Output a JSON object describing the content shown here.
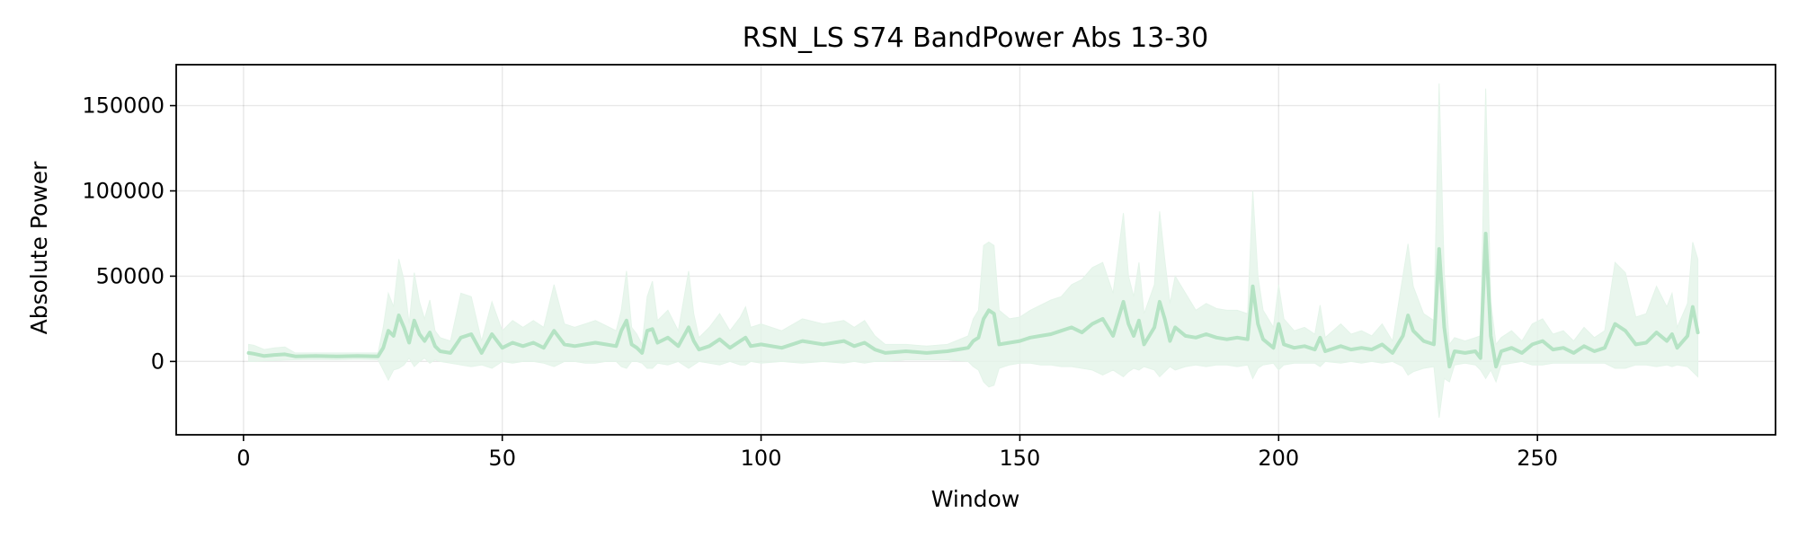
{
  "chart_data": {
    "type": "area",
    "title": "RSN_LS S74 BandPower Abs 13-30",
    "xlabel": "Window",
    "ylabel": "Absolute Power",
    "xlim": [
      -13,
      296
    ],
    "ylim": [
      -43000,
      174000
    ],
    "x_ticks": [
      0,
      50,
      100,
      150,
      200,
      250
    ],
    "y_ticks": [
      0,
      50000,
      100000,
      150000
    ],
    "x_tick_labels": [
      "0",
      "50",
      "100",
      "150",
      "200",
      "250"
    ],
    "y_tick_labels": [
      "0",
      "50000",
      "100000",
      "150000"
    ],
    "grid": true,
    "legend": "none",
    "series": [
      {
        "line_color": "#b5e3c4",
        "band_color": "#e4f4e9",
        "points": [
          [
            1,
            5000,
            0,
            10000
          ],
          [
            2,
            4500,
            0,
            9500
          ],
          [
            4,
            3200,
            300,
            7000
          ],
          [
            6,
            3800,
            500,
            8000
          ],
          [
            8,
            4200,
            800,
            8500
          ],
          [
            10,
            3000,
            1000,
            5000
          ],
          [
            14,
            3200,
            1200,
            5000
          ],
          [
            18,
            3000,
            1000,
            5000
          ],
          [
            22,
            3200,
            1300,
            5000
          ],
          [
            26,
            3000,
            1000,
            5000
          ],
          [
            27,
            8000,
            -5000,
            20000
          ],
          [
            28,
            18000,
            -11000,
            40000
          ],
          [
            29,
            15000,
            -5000,
            32000
          ],
          [
            30,
            27000,
            -4000,
            60000
          ],
          [
            31,
            20000,
            -2000,
            48000
          ],
          [
            32,
            11000,
            2000,
            22000
          ],
          [
            33,
            24000,
            -3000,
            52000
          ],
          [
            34,
            16000,
            0,
            35000
          ],
          [
            35,
            12000,
            2000,
            25000
          ],
          [
            36,
            17000,
            -1000,
            36000
          ],
          [
            37,
            9000,
            1000,
            18000
          ],
          [
            38,
            6000,
            0,
            14000
          ],
          [
            40,
            5000,
            -1000,
            12000
          ],
          [
            42,
            14000,
            -2000,
            40000
          ],
          [
            44,
            16000,
            -3000,
            38000
          ],
          [
            46,
            5000,
            -2000,
            12000
          ],
          [
            48,
            16000,
            -4000,
            35000
          ],
          [
            50,
            8000,
            0,
            18000
          ],
          [
            52,
            11000,
            -1000,
            24000
          ],
          [
            54,
            9000,
            0,
            20000
          ],
          [
            56,
            11000,
            0,
            24000
          ],
          [
            58,
            8000,
            -1000,
            20000
          ],
          [
            60,
            18000,
            -3000,
            45000
          ],
          [
            62,
            10000,
            0,
            22000
          ],
          [
            64,
            9000,
            0,
            20000
          ],
          [
            66,
            10000,
            -1000,
            22000
          ],
          [
            68,
            11000,
            -1000,
            24000
          ],
          [
            70,
            10000,
            0,
            21000
          ],
          [
            72,
            9000,
            0,
            18000
          ],
          [
            73,
            18000,
            -3000,
            30000
          ],
          [
            74,
            24000,
            -4000,
            53000
          ],
          [
            75,
            10000,
            0,
            20000
          ],
          [
            76,
            8000,
            0,
            16000
          ],
          [
            77,
            5000,
            -1000,
            10000
          ],
          [
            78,
            18000,
            -4000,
            38000
          ],
          [
            79,
            19000,
            -4000,
            47000
          ],
          [
            80,
            11000,
            -1000,
            24000
          ],
          [
            82,
            14000,
            -2000,
            30000
          ],
          [
            84,
            9000,
            0,
            18000
          ],
          [
            86,
            20000,
            -4000,
            53000
          ],
          [
            87,
            12000,
            -2000,
            28000
          ],
          [
            88,
            7000,
            0,
            14000
          ],
          [
            90,
            9000,
            -1000,
            20000
          ],
          [
            92,
            13000,
            -2000,
            28000
          ],
          [
            94,
            8000,
            0,
            18000
          ],
          [
            96,
            12000,
            -2000,
            26000
          ],
          [
            97,
            14000,
            -2000,
            32000
          ],
          [
            98,
            9000,
            0,
            20000
          ],
          [
            100,
            10000,
            -1000,
            22000
          ],
          [
            104,
            8000,
            0,
            18000
          ],
          [
            108,
            12000,
            -1000,
            25000
          ],
          [
            112,
            10000,
            0,
            22000
          ],
          [
            116,
            12000,
            -1000,
            24000
          ],
          [
            118,
            9000,
            0,
            20000
          ],
          [
            120,
            11000,
            -1000,
            24000
          ],
          [
            122,
            7000,
            0,
            15000
          ],
          [
            124,
            5000,
            0,
            10000
          ],
          [
            128,
            6000,
            1000,
            10000
          ],
          [
            132,
            5000,
            1000,
            9000
          ],
          [
            136,
            6000,
            1000,
            10000
          ],
          [
            140,
            8000,
            0,
            15000
          ],
          [
            141,
            12000,
            -3000,
            25000
          ],
          [
            142,
            14000,
            -5000,
            30000
          ],
          [
            143,
            25000,
            -12000,
            68000
          ],
          [
            144,
            30000,
            -15000,
            70000
          ],
          [
            145,
            28000,
            -14000,
            68000
          ],
          [
            146,
            10000,
            -4000,
            30000
          ],
          [
            148,
            11000,
            -2000,
            25000
          ],
          [
            150,
            12000,
            -1000,
            26000
          ],
          [
            152,
            14000,
            -1000,
            30000
          ],
          [
            154,
            15000,
            -2000,
            33000
          ],
          [
            156,
            16000,
            -2000,
            36000
          ],
          [
            158,
            18000,
            -3000,
            38000
          ],
          [
            160,
            20000,
            -3000,
            45000
          ],
          [
            162,
            17000,
            -4000,
            48000
          ],
          [
            164,
            22000,
            -5000,
            55000
          ],
          [
            166,
            25000,
            -8000,
            58000
          ],
          [
            168,
            15000,
            -5000,
            40000
          ],
          [
            170,
            35000,
            -9000,
            87000
          ],
          [
            171,
            22000,
            -6000,
            50000
          ],
          [
            172,
            15000,
            -4000,
            38000
          ],
          [
            173,
            24000,
            -5000,
            58000
          ],
          [
            174,
            10000,
            -3000,
            28000
          ],
          [
            176,
            20000,
            -5000,
            45000
          ],
          [
            177,
            35000,
            -9000,
            88000
          ],
          [
            178,
            25000,
            -6000,
            60000
          ],
          [
            179,
            12000,
            -3000,
            34000
          ],
          [
            180,
            20000,
            -5000,
            50000
          ],
          [
            182,
            15000,
            -3000,
            40000
          ],
          [
            184,
            14000,
            -2000,
            30000
          ],
          [
            186,
            16000,
            -3000,
            34000
          ],
          [
            188,
            14000,
            -2000,
            31000
          ],
          [
            190,
            13000,
            -2000,
            30000
          ],
          [
            192,
            14000,
            -3000,
            30000
          ],
          [
            194,
            13000,
            -2000,
            28000
          ],
          [
            195,
            44000,
            -10000,
            100000
          ],
          [
            196,
            22000,
            -4000,
            50000
          ],
          [
            197,
            13000,
            -2000,
            30000
          ],
          [
            199,
            8000,
            -1000,
            20000
          ],
          [
            200,
            22000,
            -5000,
            45000
          ],
          [
            201,
            10000,
            -2000,
            25000
          ],
          [
            203,
            8000,
            -1000,
            18000
          ],
          [
            205,
            9000,
            -1000,
            20000
          ],
          [
            207,
            7000,
            -1000,
            16000
          ],
          [
            208,
            14000,
            -3000,
            33000
          ],
          [
            209,
            6000,
            0,
            14000
          ],
          [
            212,
            9000,
            -1000,
            22000
          ],
          [
            214,
            7000,
            0,
            16000
          ],
          [
            216,
            8000,
            -1000,
            18000
          ],
          [
            218,
            7000,
            0,
            15000
          ],
          [
            220,
            10000,
            -1000,
            22000
          ],
          [
            222,
            5000,
            0,
            12000
          ],
          [
            224,
            15000,
            -3000,
            50000
          ],
          [
            225,
            27000,
            -8000,
            69000
          ],
          [
            226,
            18000,
            -6000,
            44000
          ],
          [
            228,
            12000,
            -4000,
            28000
          ],
          [
            230,
            10000,
            -3000,
            24000
          ],
          [
            231,
            66000,
            -33000,
            163000
          ],
          [
            232,
            20000,
            -10000,
            52000
          ],
          [
            233,
            -3000,
            -12000,
            10000
          ],
          [
            234,
            6000,
            -2000,
            14000
          ],
          [
            236,
            5000,
            -1000,
            12000
          ],
          [
            238,
            6000,
            -2000,
            14000
          ],
          [
            239,
            2000,
            -5000,
            15000
          ],
          [
            240,
            75000,
            -10000,
            160000
          ],
          [
            241,
            15000,
            -5000,
            35000
          ],
          [
            242,
            -3000,
            -12000,
            10000
          ],
          [
            243,
            6000,
            -2000,
            14000
          ],
          [
            245,
            8000,
            -1000,
            18000
          ],
          [
            247,
            5000,
            0,
            12000
          ],
          [
            249,
            10000,
            -2000,
            22000
          ],
          [
            251,
            12000,
            -2000,
            25000
          ],
          [
            253,
            7000,
            -1000,
            16000
          ],
          [
            255,
            8000,
            -1000,
            18000
          ],
          [
            257,
            5000,
            -1000,
            12000
          ],
          [
            259,
            9000,
            -1000,
            20000
          ],
          [
            261,
            6000,
            -1000,
            14000
          ],
          [
            263,
            8000,
            -1000,
            18000
          ],
          [
            265,
            22000,
            -4000,
            58000
          ],
          [
            267,
            18000,
            -4000,
            52000
          ],
          [
            269,
            10000,
            -2000,
            26000
          ],
          [
            271,
            11000,
            -2000,
            28000
          ],
          [
            273,
            17000,
            -3000,
            44000
          ],
          [
            275,
            12000,
            -2000,
            32000
          ],
          [
            276,
            16000,
            -3000,
            40000
          ],
          [
            277,
            8000,
            -2000,
            20000
          ],
          [
            279,
            15000,
            -3000,
            34000
          ],
          [
            280,
            32000,
            -6000,
            70000
          ],
          [
            281,
            17000,
            -9000,
            60000
          ]
        ]
      }
    ]
  }
}
